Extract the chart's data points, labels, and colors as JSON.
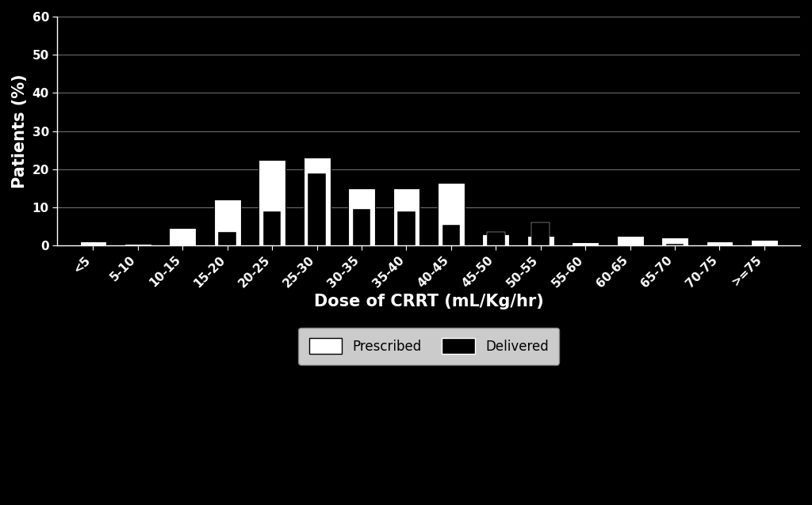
{
  "categories": [
    "<5",
    "5-10",
    "10-15",
    "15-20",
    "20-25",
    "25-30",
    "30-35",
    "35-40",
    "40-45",
    "45-50",
    "50-55",
    "55-60",
    "60-65",
    "65-70",
    "70-75",
    ">=75"
  ],
  "prescribed": [
    1.0,
    0.5,
    4.5,
    12.0,
    22.5,
    23.0,
    15.0,
    15.0,
    16.5,
    3.0,
    2.5,
    0.8,
    2.5,
    2.0,
    1.0,
    1.5
  ],
  "delivered": [
    0.0,
    0.0,
    0.0,
    3.5,
    9.0,
    19.0,
    9.5,
    9.0,
    5.5,
    3.5,
    6.0,
    0.0,
    0.0,
    0.5,
    0.0,
    0.0
  ],
  "prescribed_color": "#ffffff",
  "delivered_color": "#000000",
  "bar_edge_color": "#000000",
  "background_color": "#000000",
  "plot_area_color": "#000000",
  "text_color": "#ffffff",
  "grid_color": "#888888",
  "xlabel": "Dose of CRRT (mL/Kg/hr)",
  "ylabel": "Patients (%)",
  "ylim": [
    0,
    60
  ],
  "yticks": [
    0,
    10,
    20,
    30,
    40,
    50,
    60
  ],
  "xlabel_fontsize": 15,
  "ylabel_fontsize": 15,
  "tick_fontsize": 11,
  "legend_labels": [
    "Prescribed",
    "Delivered"
  ],
  "legend_box_color": "#ffffff",
  "prescribed_bar_width": 0.6,
  "delivered_bar_width": 0.4
}
